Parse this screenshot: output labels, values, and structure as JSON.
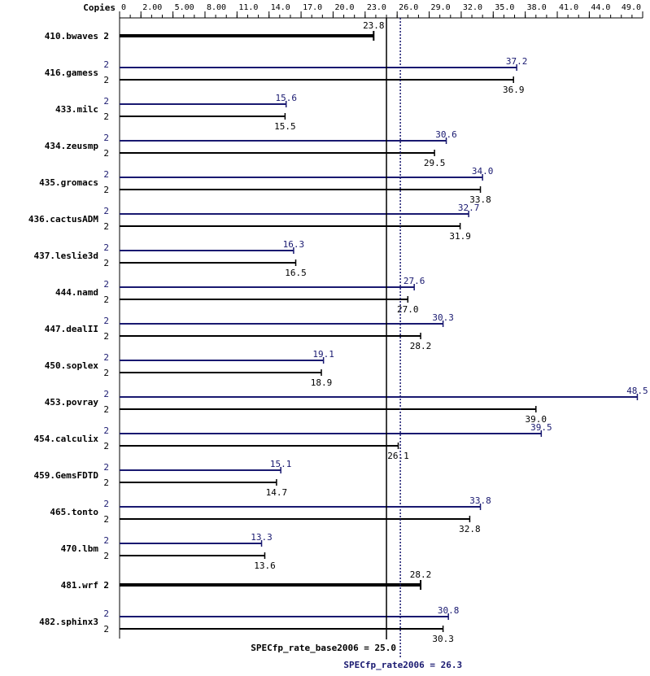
{
  "chart_data": {
    "type": "bar",
    "header": {
      "copies_label": "Copies"
    },
    "x_ticks": [
      "0",
      "2.00",
      "5.00",
      "8.00",
      "11.0",
      "14.0",
      "17.0",
      "20.0",
      "23.0",
      "26.0",
      "29.0",
      "32.0",
      "35.0",
      "38.0",
      "41.0",
      "44.0",
      "49.0"
    ],
    "xlim": [
      0,
      49
    ],
    "grid": false,
    "colors": {
      "base": "#000000",
      "peak": "#191970"
    },
    "benchmarks": [
      {
        "name": "410.bwaves",
        "base_copies": "2",
        "base": 23.8,
        "base_label": "23.8",
        "single": true
      },
      {
        "name": "416.gamess",
        "peak_copies": "2",
        "peak": 37.2,
        "peak_label": "37.2",
        "base_copies": "2",
        "base": 36.9,
        "base_label": "36.9"
      },
      {
        "name": "433.milc",
        "peak_copies": "2",
        "peak": 15.6,
        "peak_label": "15.6",
        "base_copies": "2",
        "base": 15.5,
        "base_label": "15.5"
      },
      {
        "name": "434.zeusmp",
        "peak_copies": "2",
        "peak": 30.6,
        "peak_label": "30.6",
        "base_copies": "2",
        "base": 29.5,
        "base_label": "29.5"
      },
      {
        "name": "435.gromacs",
        "peak_copies": "2",
        "peak": 34.0,
        "peak_label": "34.0",
        "base_copies": "2",
        "base": 33.8,
        "base_label": "33.8"
      },
      {
        "name": "436.cactusADM",
        "peak_copies": "2",
        "peak": 32.7,
        "peak_label": "32.7",
        "base_copies": "2",
        "base": 31.9,
        "base_label": "31.9"
      },
      {
        "name": "437.leslie3d",
        "peak_copies": "2",
        "peak": 16.3,
        "peak_label": "16.3",
        "base_copies": "2",
        "base": 16.5,
        "base_label": "16.5"
      },
      {
        "name": "444.namd",
        "peak_copies": "2",
        "peak": 27.6,
        "peak_label": "27.6",
        "base_copies": "2",
        "base": 27.0,
        "base_label": "27.0"
      },
      {
        "name": "447.dealII",
        "peak_copies": "2",
        "peak": 30.3,
        "peak_label": "30.3",
        "base_copies": "2",
        "base": 28.2,
        "base_label": "28.2"
      },
      {
        "name": "450.soplex",
        "peak_copies": "2",
        "peak": 19.1,
        "peak_label": "19.1",
        "base_copies": "2",
        "base": 18.9,
        "base_label": "18.9"
      },
      {
        "name": "453.povray",
        "peak_copies": "2",
        "peak": 48.5,
        "peak_label": "48.5",
        "base_copies": "2",
        "base": 39.0,
        "base_label": "39.0"
      },
      {
        "name": "454.calculix",
        "peak_copies": "2",
        "peak": 39.5,
        "peak_label": "39.5",
        "base_copies": "2",
        "base": 26.1,
        "base_label": "26.1"
      },
      {
        "name": "459.GemsFDTD",
        "peak_copies": "2",
        "peak": 15.1,
        "peak_label": "15.1",
        "base_copies": "2",
        "base": 14.7,
        "base_label": "14.7"
      },
      {
        "name": "465.tonto",
        "peak_copies": "2",
        "peak": 33.8,
        "peak_label": "33.8",
        "base_copies": "2",
        "base": 32.8,
        "base_label": "32.8"
      },
      {
        "name": "470.lbm",
        "peak_copies": "2",
        "peak": 13.3,
        "peak_label": "13.3",
        "base_copies": "2",
        "base": 13.6,
        "base_label": "13.6"
      },
      {
        "name": "481.wrf",
        "base_copies": "2",
        "base": 28.2,
        "base_label": "28.2",
        "single": true
      },
      {
        "name": "482.sphinx3",
        "peak_copies": "2",
        "peak": 30.8,
        "peak_label": "30.8",
        "base_copies": "2",
        "base": 30.3,
        "base_label": "30.3"
      }
    ],
    "summary": {
      "base_label": "SPECfp_rate_base2006 = 25.0",
      "base_value": 25.0,
      "peak_label": "SPECfp_rate2006 = 26.3",
      "peak_value": 26.3
    }
  }
}
